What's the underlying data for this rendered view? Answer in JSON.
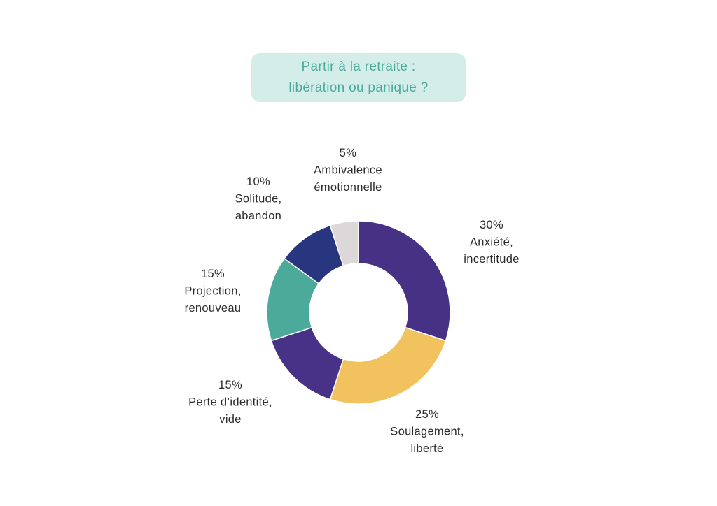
{
  "title": {
    "line1": "Partir à la retraite :",
    "line2": "libération ou panique ?"
  },
  "chart_data": {
    "type": "pie",
    "donut": true,
    "slices": [
      {
        "percent_label": "30%",
        "name_lines": [
          "Anxiété,",
          "incertitude"
        ],
        "value": 30,
        "color": "#463184"
      },
      {
        "percent_label": "25%",
        "name_lines": [
          "Soulagement,",
          "liberté"
        ],
        "value": 25,
        "color": "#f2c25f"
      },
      {
        "percent_label": "15%",
        "name_lines": [
          "Perte d’identité,",
          "vide"
        ],
        "value": 15,
        "color": "#473287"
      },
      {
        "percent_label": "15%",
        "name_lines": [
          "Projection,",
          "renouveau"
        ],
        "value": 15,
        "color": "#4caa9b"
      },
      {
        "percent_label": "10%",
        "name_lines": [
          "Solitude,",
          "abandon"
        ],
        "value": 10,
        "color": "#283680"
      },
      {
        "percent_label": "5%",
        "name_lines": [
          "Ambivalence",
          "émotionnelle"
        ],
        "value": 5,
        "color": "#dcd8d9"
      }
    ]
  }
}
